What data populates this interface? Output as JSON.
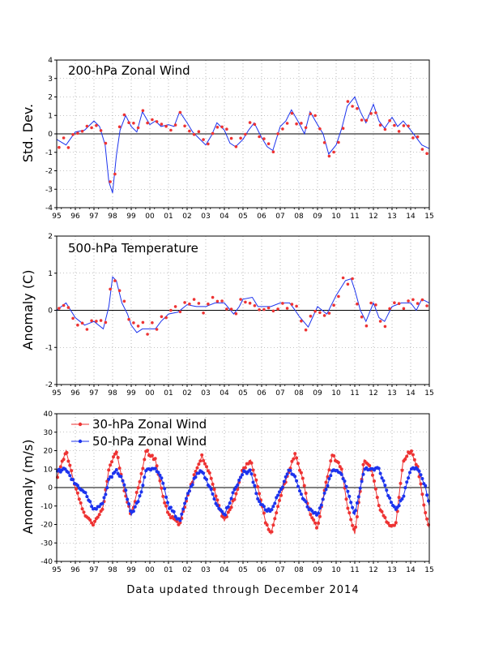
{
  "footer": "Data updated through December 2014",
  "colors": {
    "red": "#ee3333",
    "blue": "#1c33ee",
    "line": "#1c33ee",
    "axis": "#000000",
    "grid": "#888888"
  },
  "chart_data": [
    {
      "type": "line",
      "title": "200-hPa Zonal Wind",
      "ylabel": "Std. Dev.",
      "xlim": [
        1995,
        2015
      ],
      "ylim": [
        -4,
        4
      ],
      "yticks": [
        -4,
        -3,
        -2,
        -1,
        0,
        1,
        2,
        3,
        4
      ],
      "xtick_labels": [
        "95",
        "96",
        "97",
        "98",
        "99",
        "00",
        "01",
        "02",
        "03",
        "04",
        "05",
        "06",
        "07",
        "08",
        "09",
        "10",
        "11",
        "12",
        "13",
        "14",
        "15"
      ],
      "grid": true,
      "series": [
        {
          "style": "blue line, red dots",
          "x": [
            1995.0,
            1995.5,
            1996.0,
            1996.5,
            1997.0,
            1997.3,
            1997.6,
            1997.8,
            1998.0,
            1998.2,
            1998.4,
            1998.7,
            1999.0,
            1999.3,
            1999.6,
            2000.0,
            2000.3,
            2000.6,
            2001.0,
            2001.3,
            2001.6,
            2002.0,
            2002.3,
            2002.6,
            2003.0,
            2003.3,
            2003.6,
            2004.0,
            2004.3,
            2004.6,
            2005.0,
            2005.3,
            2005.6,
            2006.0,
            2006.3,
            2006.6,
            2007.0,
            2007.3,
            2007.6,
            2008.0,
            2008.3,
            2008.6,
            2009.0,
            2009.3,
            2009.6,
            2010.0,
            2010.3,
            2010.6,
            2011.0,
            2011.3,
            2011.6,
            2012.0,
            2012.3,
            2012.6,
            2013.0,
            2013.3,
            2013.6,
            2014.0,
            2014.3,
            2014.6,
            2015.0
          ],
          "values": [
            -0.3,
            -0.6,
            0.1,
            0.2,
            0.7,
            0.4,
            -0.6,
            -2.6,
            -3.2,
            -1.2,
            0.2,
            1.0,
            0.4,
            0.1,
            1.2,
            0.5,
            0.7,
            0.4,
            0.5,
            0.4,
            1.2,
            0.6,
            0.1,
            -0.2,
            -0.6,
            -0.1,
            0.6,
            0.2,
            -0.5,
            -0.7,
            -0.3,
            0.2,
            0.6,
            -0.2,
            -0.7,
            -0.9,
            0.4,
            0.7,
            1.3,
            0.6,
            0.0,
            1.2,
            0.5,
            0.0,
            -1.1,
            -0.6,
            0.3,
            1.5,
            2.0,
            1.2,
            0.6,
            1.6,
            0.7,
            0.3,
            0.9,
            0.4,
            0.7,
            0.2,
            -0.2,
            -0.6,
            -0.8
          ]
        }
      ]
    },
    {
      "type": "line",
      "title": "500-hPa Temperature",
      "ylabel": "Anomaly (C)",
      "xlim": [
        1995,
        2015
      ],
      "ylim": [
        -2,
        2
      ],
      "yticks": [
        -2,
        -1,
        0,
        1,
        2
      ],
      "xtick_labels": [
        "95",
        "96",
        "97",
        "98",
        "99",
        "00",
        "01",
        "02",
        "03",
        "04",
        "05",
        "06",
        "07",
        "08",
        "09",
        "10",
        "11",
        "12",
        "13",
        "14",
        "15"
      ],
      "grid": true,
      "series": [
        {
          "style": "blue line, red dots",
          "x": [
            1995.0,
            1995.5,
            1996.0,
            1996.5,
            1997.0,
            1997.5,
            1997.8,
            1998.0,
            1998.2,
            1998.5,
            1998.8,
            1999.0,
            1999.3,
            1999.6,
            2000.0,
            2000.3,
            2000.6,
            2001.0,
            2001.5,
            2002.0,
            2002.5,
            2003.0,
            2003.5,
            2004.0,
            2004.5,
            2004.8,
            2005.0,
            2005.5,
            2005.8,
            2006.0,
            2006.5,
            2007.0,
            2007.5,
            2007.8,
            2008.0,
            2008.5,
            2009.0,
            2009.5,
            2010.0,
            2010.5,
            2010.8,
            2011.0,
            2011.3,
            2011.6,
            2012.0,
            2012.3,
            2012.6,
            2013.0,
            2013.5,
            2014.0,
            2014.3,
            2014.6,
            2015.0
          ],
          "values": [
            0.0,
            0.2,
            -0.2,
            -0.4,
            -0.3,
            -0.5,
            0.1,
            0.9,
            0.8,
            0.2,
            -0.1,
            -0.4,
            -0.6,
            -0.5,
            -0.5,
            -0.5,
            -0.3,
            -0.1,
            -0.05,
            0.15,
            0.1,
            0.1,
            0.2,
            0.2,
            -0.1,
            0.1,
            0.3,
            0.35,
            0.1,
            0.1,
            0.1,
            0.2,
            0.2,
            0.0,
            -0.15,
            -0.45,
            0.1,
            -0.1,
            0.4,
            0.8,
            0.85,
            0.55,
            0.0,
            -0.3,
            0.2,
            -0.2,
            -0.3,
            0.1,
            0.2,
            0.2,
            0.0,
            0.3,
            0.2
          ]
        }
      ]
    },
    {
      "type": "line",
      "title": "",
      "ylabel": "Anomaly (m/s)",
      "xlim": [
        1995,
        2015
      ],
      "ylim": [
        -40,
        40
      ],
      "yticks": [
        -40,
        -30,
        -20,
        -10,
        0,
        10,
        20,
        30,
        40
      ],
      "xtick_labels": [
        "95",
        "96",
        "97",
        "98",
        "99",
        "00",
        "01",
        "02",
        "03",
        "04",
        "05",
        "06",
        "07",
        "08",
        "09",
        "10",
        "11",
        "12",
        "13",
        "14",
        "15"
      ],
      "grid": true,
      "legend": "top-left",
      "series": [
        {
          "name": "30-hPa Zonal Wind",
          "color": "red",
          "x": [
            1995.0,
            1995.5,
            1996.0,
            1996.5,
            1997.0,
            1997.5,
            1997.8,
            1998.2,
            1998.6,
            1999.0,
            1999.5,
            1999.8,
            2000.3,
            2000.7,
            2001.0,
            2001.6,
            2002.0,
            2002.5,
            2002.8,
            2003.3,
            2003.7,
            2004.0,
            2004.6,
            2005.0,
            2005.4,
            2005.8,
            2006.2,
            2006.5,
            2007.0,
            2007.5,
            2007.8,
            2008.2,
            2008.6,
            2009.0,
            2009.5,
            2009.8,
            2010.3,
            2010.6,
            2011.0,
            2011.5,
            2011.9,
            2012.3,
            2012.8,
            2013.2,
            2013.6,
            2014.0,
            2014.4,
            2014.8,
            2015.0
          ],
          "values": [
            5,
            20,
            0,
            -15,
            -20,
            -10,
            10,
            20,
            0,
            -15,
            5,
            20,
            15,
            -5,
            -15,
            -20,
            -5,
            10,
            17,
            5,
            -10,
            -18,
            -5,
            10,
            15,
            0,
            -18,
            -25,
            -5,
            10,
            18,
            5,
            -15,
            -22,
            5,
            18,
            10,
            -10,
            -25,
            15,
            10,
            -10,
            -20,
            -20,
            15,
            20,
            10,
            -15,
            -22
          ]
        },
        {
          "name": "50-hPa Zonal Wind",
          "color": "blue",
          "x": [
            1995.0,
            1995.5,
            1996.0,
            1996.5,
            1997.0,
            1997.5,
            1997.8,
            1998.2,
            1998.6,
            1999.0,
            1999.5,
            1999.8,
            2000.3,
            2000.7,
            2001.0,
            2001.6,
            2002.0,
            2002.5,
            2002.8,
            2003.3,
            2003.7,
            2004.0,
            2004.6,
            2005.0,
            2005.4,
            2005.8,
            2006.2,
            2006.5,
            2007.0,
            2007.5,
            2007.8,
            2008.2,
            2008.6,
            2009.0,
            2009.5,
            2009.8,
            2010.3,
            2010.6,
            2011.0,
            2011.5,
            2011.9,
            2012.3,
            2012.8,
            2013.2,
            2013.6,
            2014.0,
            2014.4,
            2014.8,
            2015.0
          ],
          "values": [
            9,
            10,
            2,
            -2,
            -12,
            -8,
            4,
            10,
            3,
            -15,
            -4,
            10,
            10,
            3,
            -10,
            -18,
            -4,
            7,
            9,
            -2,
            -12,
            -15,
            0,
            8,
            9,
            -6,
            -12,
            -12,
            -2,
            10,
            5,
            -5,
            -12,
            -15,
            0,
            10,
            8,
            -2,
            -15,
            10,
            10,
            10,
            -5,
            -12,
            -5,
            10,
            10,
            0,
            -10
          ]
        }
      ]
    }
  ]
}
